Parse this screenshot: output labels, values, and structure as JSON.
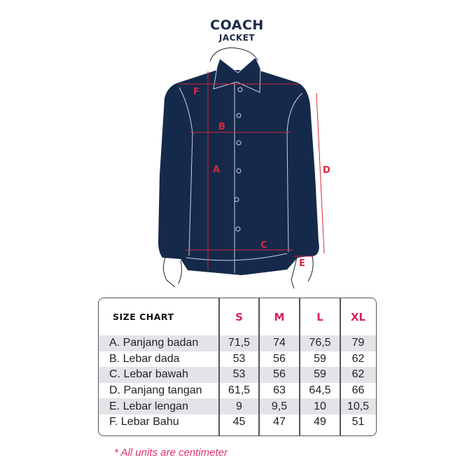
{
  "title": "COACH",
  "subtitle": "JACKET",
  "measure_labels": [
    "F",
    "B",
    "A",
    "D",
    "C",
    "E"
  ],
  "colors": {
    "jacket": "#15294a",
    "measure": "#d8283c",
    "size_header": "#d6245a",
    "stripe": "#e4e4e8"
  },
  "table": {
    "header": "SIZE CHART",
    "sizes": [
      "S",
      "M",
      "L",
      "XL"
    ],
    "rows": [
      {
        "label": "A. Panjang badan",
        "values": [
          "71,5",
          "74",
          "76,5",
          "79"
        ]
      },
      {
        "label": "B. Lebar dada",
        "values": [
          "53",
          "56",
          "59",
          "62"
        ]
      },
      {
        "label": "C. Lebar bawah",
        "values": [
          "53",
          "56",
          "59",
          "62"
        ]
      },
      {
        "label": "D. Panjang tangan",
        "values": [
          "61,5",
          "63",
          "64,5",
          "66"
        ]
      },
      {
        "label": "E. Lebar lengan",
        "values": [
          "9",
          "9,5",
          "10",
          "10,5"
        ]
      },
      {
        "label": "F. Lebar Bahu",
        "values": [
          "45",
          "47",
          "49",
          "51"
        ]
      }
    ]
  },
  "footnote": "* All units are centimeter"
}
